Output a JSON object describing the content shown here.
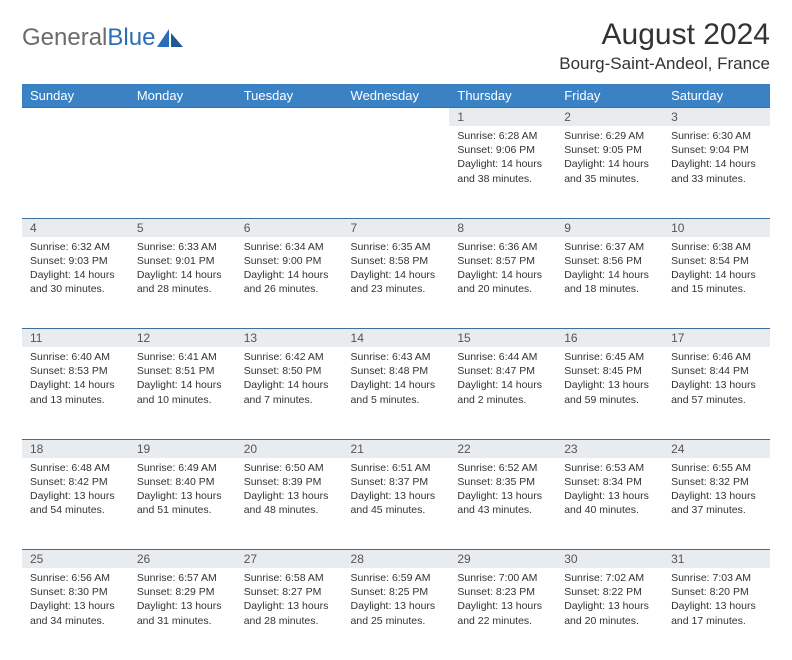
{
  "logo": {
    "text_general": "General",
    "text_blue": "Blue"
  },
  "title": "August 2024",
  "location": "Bourg-Saint-Andeol, France",
  "day_headers": [
    "Sunday",
    "Monday",
    "Tuesday",
    "Wednesday",
    "Thursday",
    "Friday",
    "Saturday"
  ],
  "colors": {
    "header_bg": "#3b82c4",
    "header_text": "#ffffff",
    "daynum_bg": "#e9ecef",
    "border": "#3b6fa0",
    "logo_gray": "#6b6b6b",
    "logo_blue": "#2a6fb5"
  },
  "weeks": [
    [
      null,
      null,
      null,
      null,
      {
        "n": "1",
        "sr": "6:28 AM",
        "ss": "9:06 PM",
        "dl": "14 hours and 38 minutes."
      },
      {
        "n": "2",
        "sr": "6:29 AM",
        "ss": "9:05 PM",
        "dl": "14 hours and 35 minutes."
      },
      {
        "n": "3",
        "sr": "6:30 AM",
        "ss": "9:04 PM",
        "dl": "14 hours and 33 minutes."
      }
    ],
    [
      {
        "n": "4",
        "sr": "6:32 AM",
        "ss": "9:03 PM",
        "dl": "14 hours and 30 minutes."
      },
      {
        "n": "5",
        "sr": "6:33 AM",
        "ss": "9:01 PM",
        "dl": "14 hours and 28 minutes."
      },
      {
        "n": "6",
        "sr": "6:34 AM",
        "ss": "9:00 PM",
        "dl": "14 hours and 26 minutes."
      },
      {
        "n": "7",
        "sr": "6:35 AM",
        "ss": "8:58 PM",
        "dl": "14 hours and 23 minutes."
      },
      {
        "n": "8",
        "sr": "6:36 AM",
        "ss": "8:57 PM",
        "dl": "14 hours and 20 minutes."
      },
      {
        "n": "9",
        "sr": "6:37 AM",
        "ss": "8:56 PM",
        "dl": "14 hours and 18 minutes."
      },
      {
        "n": "10",
        "sr": "6:38 AM",
        "ss": "8:54 PM",
        "dl": "14 hours and 15 minutes."
      }
    ],
    [
      {
        "n": "11",
        "sr": "6:40 AM",
        "ss": "8:53 PM",
        "dl": "14 hours and 13 minutes."
      },
      {
        "n": "12",
        "sr": "6:41 AM",
        "ss": "8:51 PM",
        "dl": "14 hours and 10 minutes."
      },
      {
        "n": "13",
        "sr": "6:42 AM",
        "ss": "8:50 PM",
        "dl": "14 hours and 7 minutes."
      },
      {
        "n": "14",
        "sr": "6:43 AM",
        "ss": "8:48 PM",
        "dl": "14 hours and 5 minutes."
      },
      {
        "n": "15",
        "sr": "6:44 AM",
        "ss": "8:47 PM",
        "dl": "14 hours and 2 minutes."
      },
      {
        "n": "16",
        "sr": "6:45 AM",
        "ss": "8:45 PM",
        "dl": "13 hours and 59 minutes."
      },
      {
        "n": "17",
        "sr": "6:46 AM",
        "ss": "8:44 PM",
        "dl": "13 hours and 57 minutes."
      }
    ],
    [
      {
        "n": "18",
        "sr": "6:48 AM",
        "ss": "8:42 PM",
        "dl": "13 hours and 54 minutes."
      },
      {
        "n": "19",
        "sr": "6:49 AM",
        "ss": "8:40 PM",
        "dl": "13 hours and 51 minutes."
      },
      {
        "n": "20",
        "sr": "6:50 AM",
        "ss": "8:39 PM",
        "dl": "13 hours and 48 minutes."
      },
      {
        "n": "21",
        "sr": "6:51 AM",
        "ss": "8:37 PM",
        "dl": "13 hours and 45 minutes."
      },
      {
        "n": "22",
        "sr": "6:52 AM",
        "ss": "8:35 PM",
        "dl": "13 hours and 43 minutes."
      },
      {
        "n": "23",
        "sr": "6:53 AM",
        "ss": "8:34 PM",
        "dl": "13 hours and 40 minutes."
      },
      {
        "n": "24",
        "sr": "6:55 AM",
        "ss": "8:32 PM",
        "dl": "13 hours and 37 minutes."
      }
    ],
    [
      {
        "n": "25",
        "sr": "6:56 AM",
        "ss": "8:30 PM",
        "dl": "13 hours and 34 minutes."
      },
      {
        "n": "26",
        "sr": "6:57 AM",
        "ss": "8:29 PM",
        "dl": "13 hours and 31 minutes."
      },
      {
        "n": "27",
        "sr": "6:58 AM",
        "ss": "8:27 PM",
        "dl": "13 hours and 28 minutes."
      },
      {
        "n": "28",
        "sr": "6:59 AM",
        "ss": "8:25 PM",
        "dl": "13 hours and 25 minutes."
      },
      {
        "n": "29",
        "sr": "7:00 AM",
        "ss": "8:23 PM",
        "dl": "13 hours and 22 minutes."
      },
      {
        "n": "30",
        "sr": "7:02 AM",
        "ss": "8:22 PM",
        "dl": "13 hours and 20 minutes."
      },
      {
        "n": "31",
        "sr": "7:03 AM",
        "ss": "8:20 PM",
        "dl": "13 hours and 17 minutes."
      }
    ]
  ],
  "labels": {
    "sunrise": "Sunrise: ",
    "sunset": "Sunset: ",
    "daylight": "Daylight: "
  }
}
